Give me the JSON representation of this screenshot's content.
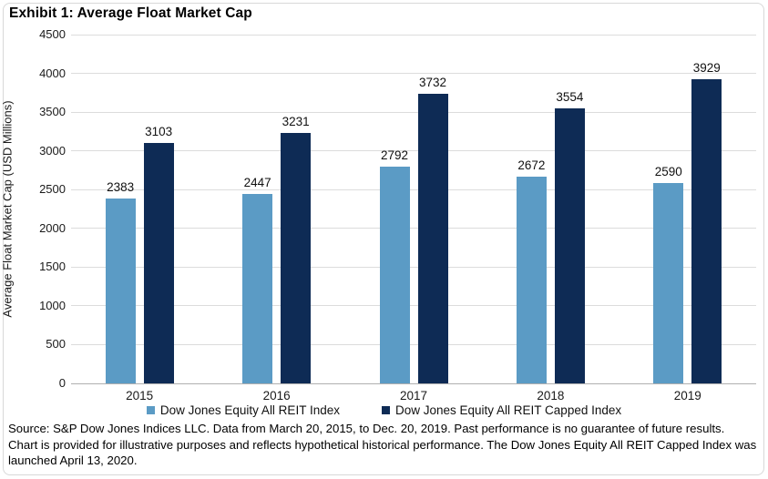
{
  "figure": {
    "title": "Exhibit 1: Average Float Market Cap",
    "source_note": "Source: S&P Dow Jones Indices LLC. Data from March 20, 2015, to Dec. 20, 2019. Past performance is no guarantee of future results. Chart is provided for illustrative purposes and reflects hypothetical historical performance. The Dow Jones Equity All REIT Capped Index was launched April 13, 2020."
  },
  "chart_data": {
    "type": "bar",
    "title": "Exhibit 1: Average Float Market Cap",
    "categories": [
      "2015",
      "2016",
      "2017",
      "2018",
      "2019"
    ],
    "series": [
      {
        "name": "Dow Jones Equity All REIT Index",
        "color": "#5B9BC5",
        "values": [
          2383,
          2447,
          2792,
          2672,
          2590
        ]
      },
      {
        "name": "Dow Jones Equity All REIT Capped Index",
        "color": "#0E2B55",
        "values": [
          3103,
          3231,
          3732,
          3554,
          3929
        ]
      }
    ],
    "xlabel": "",
    "ylabel": "Average Float Market Cap (USD Millions)",
    "ylim": [
      0,
      4500
    ],
    "yticks": [
      0,
      500,
      1000,
      1500,
      2000,
      2500,
      3000,
      3500,
      4000,
      4500
    ],
    "grid": true,
    "legend_position": "bottom",
    "data_labels": true,
    "colors": {
      "gridline": "#DCDCDC",
      "zero_axis": "#B0B0B0",
      "frame_border": "#D8D8D8",
      "text": "#000000"
    }
  }
}
